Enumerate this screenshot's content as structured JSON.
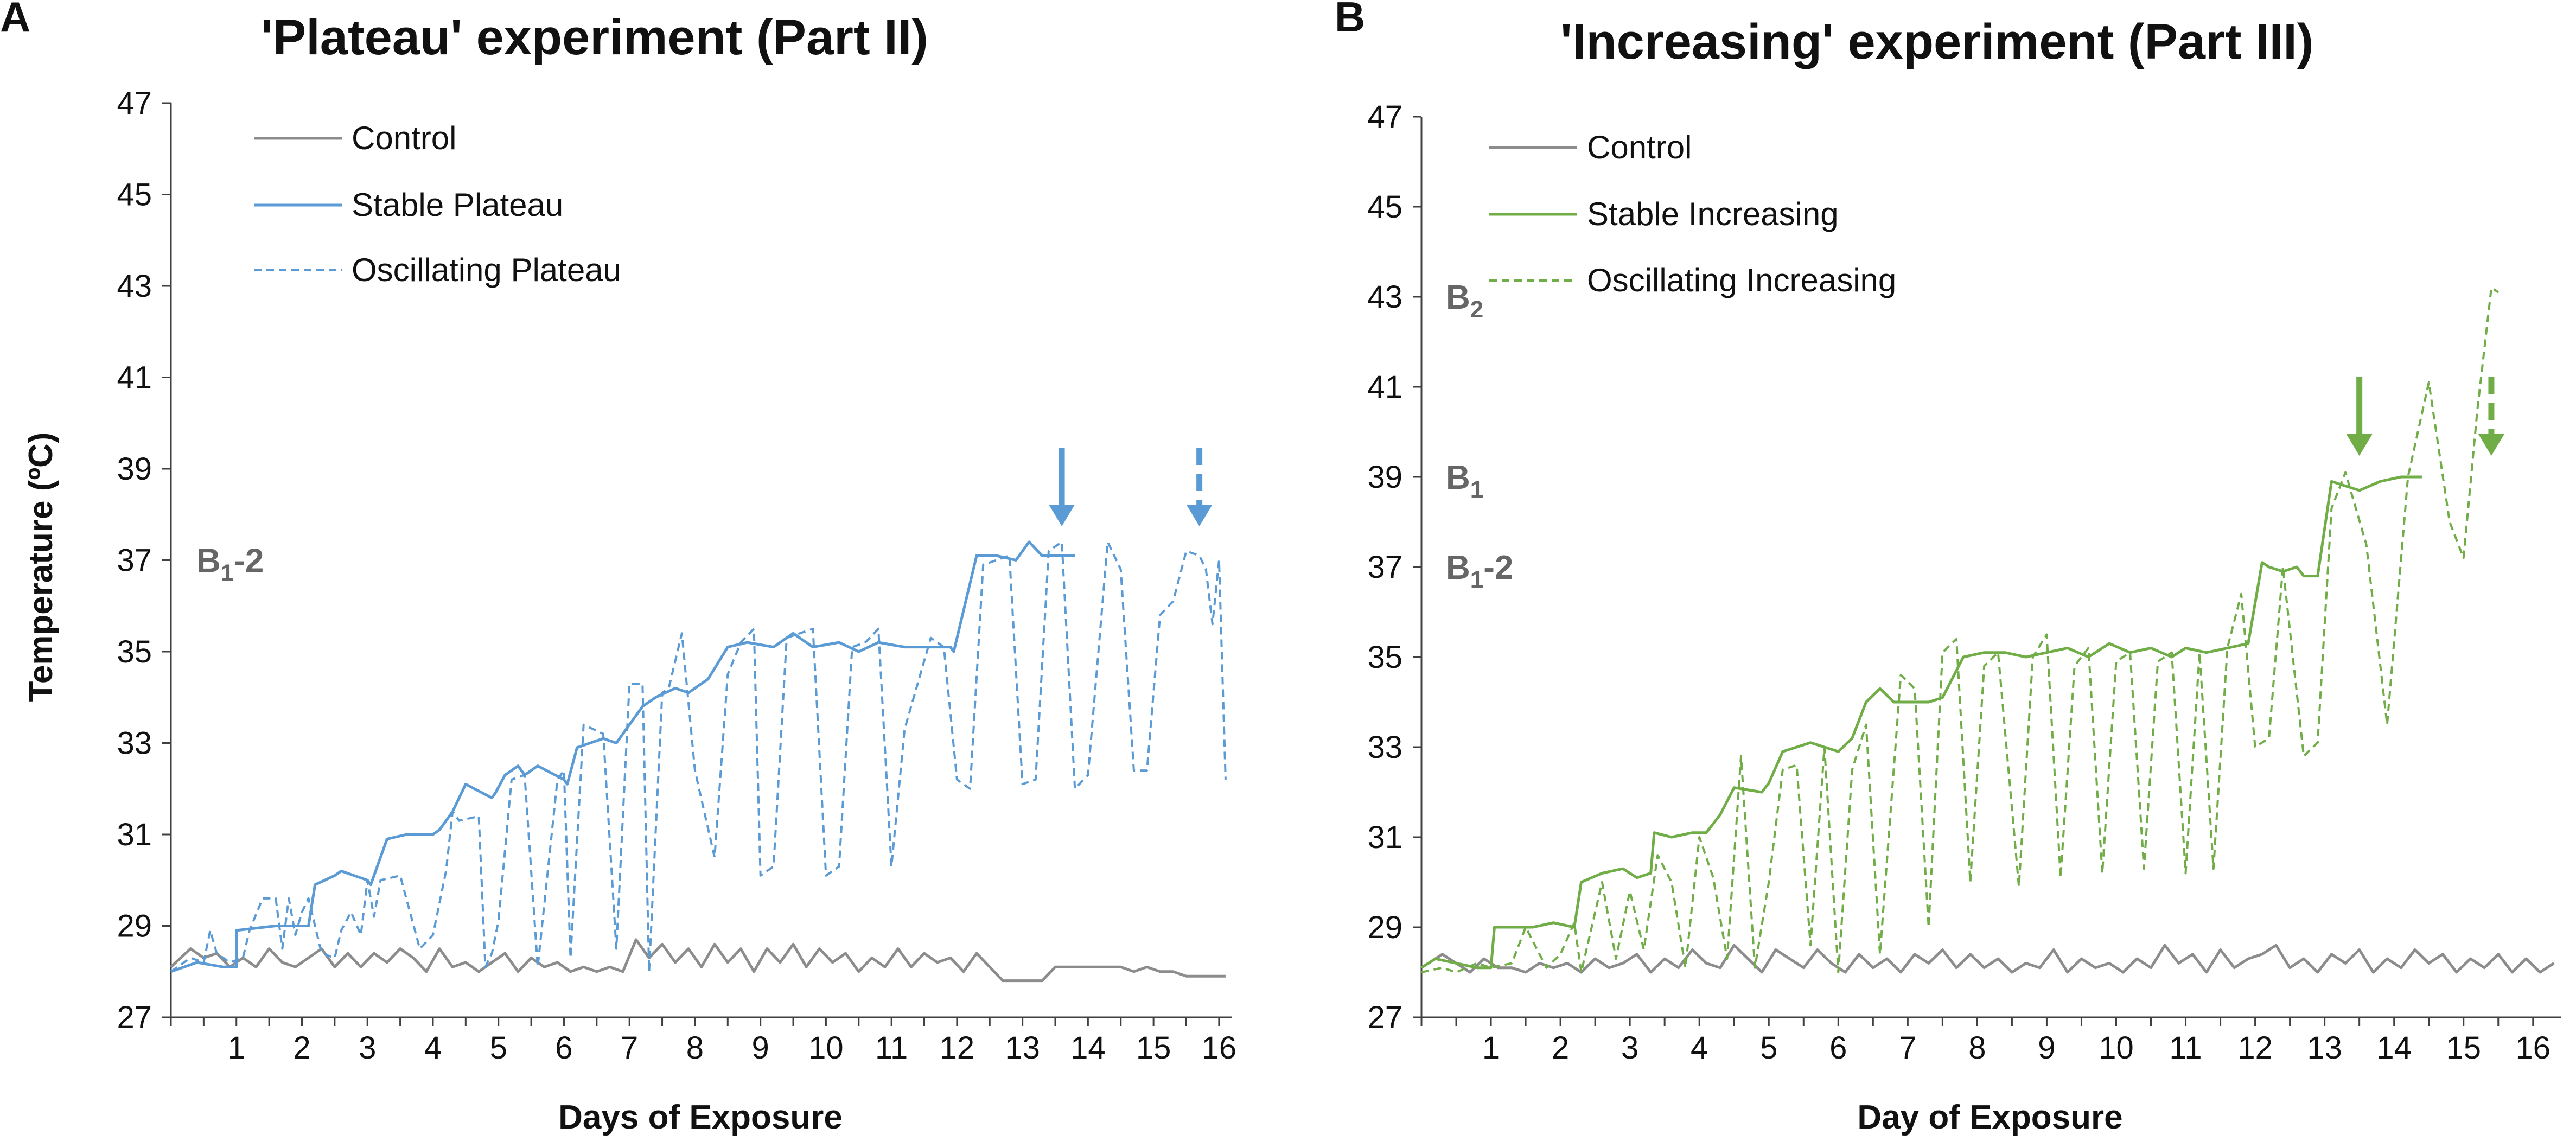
{
  "colors": {
    "control": "#8c8c8c",
    "blue": "#5b9bd5",
    "green": "#70ad47",
    "axis": "#404040",
    "text": "#111111",
    "annot": "#666666"
  },
  "panels": [
    {
      "letter": "A",
      "title": "'Plateau' experiment (Part II)"
    },
    {
      "letter": "B",
      "title": "'Increasing' experiment (Part III)"
    }
  ],
  "chart_data": [
    {
      "type": "line",
      "title": "'Plateau' experiment (Part II)",
      "xlabel": "Days of Exposure",
      "ylabel": "Temperature (ºC)",
      "ylim": [
        27,
        47
      ],
      "xlim": [
        0,
        16.2
      ],
      "yticks": [
        27,
        29,
        31,
        33,
        35,
        37,
        39,
        41,
        43,
        45,
        47
      ],
      "xticks": [
        "1",
        "2",
        "3",
        "4",
        "5",
        "6",
        "7",
        "8",
        "9",
        "10",
        "11",
        "12",
        "13",
        "14",
        "15",
        "16"
      ],
      "legend": [
        "Control",
        "Stable Plateau",
        "Oscillating Plateau"
      ],
      "annotations": [
        {
          "text": "B1-2",
          "y": 37
        }
      ],
      "arrows": [
        {
          "style": "solid",
          "x": 13.6
        },
        {
          "style": "dashed",
          "x": 15.7
        }
      ],
      "series": [
        {
          "name": "Control",
          "style": "solid",
          "color": "#8c8c8c",
          "x": [
            0,
            0.3,
            0.5,
            0.7,
            0.9,
            1.1,
            1.3,
            1.5,
            1.7,
            1.9,
            2.1,
            2.3,
            2.5,
            2.7,
            2.9,
            3.1,
            3.3,
            3.5,
            3.7,
            3.9,
            4.1,
            4.3,
            4.5,
            4.7,
            4.9,
            5.1,
            5.3,
            5.5,
            5.7,
            5.9,
            6.1,
            6.3,
            6.5,
            6.7,
            6.9,
            7.1,
            7.3,
            7.5,
            7.7,
            7.9,
            8.1,
            8.3,
            8.5,
            8.7,
            8.9,
            9.1,
            9.3,
            9.5,
            9.7,
            9.9,
            10.1,
            10.3,
            10.5,
            10.7,
            10.9,
            11.1,
            11.3,
            11.5,
            11.7,
            11.9,
            12.1,
            12.3,
            12.5,
            12.7,
            12.9,
            13.1,
            13.3,
            13.5,
            13.7,
            13.9,
            14.1,
            14.3,
            14.5,
            14.7,
            14.9,
            15.1,
            15.3,
            15.5,
            15.7,
            15.9,
            16.1
          ],
          "y": [
            28.1,
            28.5,
            28.3,
            28.4,
            28.1,
            28.3,
            28.1,
            28.5,
            28.2,
            28.1,
            28.3,
            28.5,
            28.1,
            28.4,
            28.1,
            28.4,
            28.2,
            28.5,
            28.3,
            28.0,
            28.5,
            28.1,
            28.2,
            28.0,
            28.2,
            28.4,
            28.0,
            28.3,
            28.1,
            28.2,
            28.0,
            28.1,
            28.0,
            28.1,
            28.0,
            28.7,
            28.3,
            28.6,
            28.2,
            28.5,
            28.1,
            28.6,
            28.2,
            28.5,
            28.0,
            28.5,
            28.2,
            28.6,
            28.1,
            28.5,
            28.2,
            28.4,
            28.0,
            28.3,
            28.1,
            28.5,
            28.1,
            28.4,
            28.2,
            28.3,
            28.0,
            28.4,
            28.1,
            27.8,
            27.8,
            27.8,
            27.8,
            28.1,
            28.1,
            28.1,
            28.1,
            28.1,
            28.1,
            28.0,
            28.1,
            28.0,
            28.0,
            27.9,
            27.9,
            27.9,
            27.9
          ]
        },
        {
          "name": "Stable Plateau",
          "style": "solid",
          "color": "#5b9bd5",
          "x": [
            0,
            0.4,
            0.8,
            1,
            1,
            1.6,
            1.7,
            2.1,
            2.2,
            2.5,
            2.6,
            3,
            3.05,
            3.3,
            3.6,
            3.9,
            4,
            4.1,
            4.3,
            4.5,
            4.9,
            4.95,
            5.1,
            5.3,
            5.4,
            5.6,
            6,
            6.05,
            6.2,
            6.4,
            6.6,
            6.8,
            6.9,
            7.2,
            7.4,
            7.7,
            7.9,
            8.2,
            8.5,
            8.8,
            9.2,
            9.5,
            9.8,
            10.2,
            10.5,
            10.8,
            11.2,
            11.5,
            11.9,
            11.95,
            12.3,
            12.6,
            12.9,
            13.1,
            13.3,
            13.5,
            13.8
          ],
          "y": [
            28.0,
            28.2,
            28.1,
            28.1,
            28.9,
            29.0,
            29.0,
            29.0,
            29.9,
            30.1,
            30.2,
            30.0,
            29.9,
            30.9,
            31.0,
            31.0,
            31.0,
            31.1,
            31.5,
            32.1,
            31.8,
            31.9,
            32.3,
            32.5,
            32.3,
            32.5,
            32.2,
            32.1,
            32.9,
            33.0,
            33.1,
            33.0,
            33.2,
            33.8,
            34.0,
            34.2,
            34.1,
            34.4,
            35.1,
            35.2,
            35.1,
            35.4,
            35.1,
            35.2,
            35.0,
            35.2,
            35.1,
            35.1,
            35.1,
            35.0,
            37.1,
            37.1,
            37.0,
            37.4,
            37.1,
            37.1,
            37.1
          ]
        },
        {
          "name": "Oscillating Plateau",
          "style": "dashed",
          "color": "#5b9bd5",
          "x": [
            0,
            0.3,
            0.5,
            0.6,
            0.7,
            0.9,
            1.1,
            1.2,
            1.4,
            1.6,
            1.7,
            1.8,
            1.9,
            2.0,
            2.1,
            2.3,
            2.5,
            2.6,
            2.75,
            2.9,
            3.0,
            3.1,
            3.2,
            3.5,
            3.8,
            4.0,
            4.2,
            4.3,
            4.4,
            4.7,
            4.8,
            4.9,
            5.0,
            5.2,
            5.4,
            5.6,
            5.9,
            6.0,
            6.1,
            6.3,
            6.6,
            6.8,
            7.0,
            7.2,
            7.3,
            7.5,
            7.6,
            7.8,
            8.0,
            8.3,
            8.5,
            8.7,
            8.9,
            9.0,
            9.2,
            9.4,
            9.6,
            9.8,
            10.0,
            10.2,
            10.4,
            10.6,
            10.8,
            11.0,
            11.2,
            11.6,
            11.8,
            12.0,
            12.2,
            12.4,
            12.6,
            12.8,
            13.0,
            13.2,
            13.4,
            13.6,
            13.8,
            14.0,
            14.3,
            14.5,
            14.7,
            14.9,
            15.1,
            15.3,
            15.5,
            15.7,
            15.8,
            15.9,
            16.0,
            16.1
          ],
          "y": [
            28.0,
            28.3,
            28.2,
            28.9,
            28.4,
            28.2,
            28.3,
            28.9,
            29.6,
            29.6,
            28.5,
            29.6,
            28.8,
            29.3,
            29.6,
            28.4,
            28.3,
            28.9,
            29.3,
            28.8,
            30.0,
            29.2,
            30.0,
            30.1,
            28.5,
            28.8,
            30.2,
            31.5,
            31.3,
            31.4,
            28.1,
            28.4,
            29.1,
            32.2,
            32.3,
            28.1,
            32.2,
            32.4,
            28.3,
            33.4,
            33.2,
            28.5,
            34.3,
            34.3,
            28.0,
            34.1,
            34.2,
            35.4,
            32.4,
            30.5,
            34.5,
            35.2,
            35.5,
            30.1,
            30.3,
            35.3,
            35.4,
            35.5,
            30.1,
            30.3,
            35.1,
            35.2,
            35.5,
            30.3,
            33.3,
            35.3,
            35.1,
            32.2,
            32.0,
            36.9,
            37.0,
            37.1,
            32.1,
            32.2,
            37.2,
            37.4,
            32.0,
            32.3,
            37.4,
            36.8,
            32.4,
            32.4,
            35.8,
            36.1,
            37.2,
            37.1,
            36.8,
            35.6,
            37.0,
            32.2
          ]
        }
      ]
    },
    {
      "type": "line",
      "title": "'Increasing' experiment (Part III)",
      "xlabel": "Day of Exposure",
      "ylabel": "",
      "ylim": [
        27,
        47
      ],
      "xlim": [
        0,
        16.4
      ],
      "yticks": [
        27,
        29,
        31,
        33,
        35,
        37,
        39,
        41,
        43,
        45,
        47
      ],
      "xticks": [
        "1",
        "2",
        "3",
        "4",
        "5",
        "6",
        "7",
        "8",
        "9",
        "10",
        "11",
        "12",
        "13",
        "14",
        "15",
        "16"
      ],
      "legend": [
        "Control",
        "Stable Increasing",
        "Oscillating Increasing"
      ],
      "annotations": [
        {
          "text": "B2",
          "y": 43
        },
        {
          "text": "B1",
          "y": 39
        },
        {
          "text": "B1-2",
          "y": 37
        }
      ],
      "arrows": [
        {
          "style": "solid",
          "x": 13.5
        },
        {
          "style": "dashed",
          "x": 15.4
        }
      ],
      "series": [
        {
          "name": "Control",
          "style": "solid",
          "color": "#8c8c8c",
          "x": [
            0,
            0.3,
            0.5,
            0.7,
            0.9,
            1.1,
            1.3,
            1.5,
            1.7,
            1.9,
            2.1,
            2.3,
            2.5,
            2.7,
            2.9,
            3.1,
            3.3,
            3.5,
            3.7,
            3.9,
            4.1,
            4.3,
            4.5,
            4.7,
            4.9,
            5.1,
            5.3,
            5.5,
            5.7,
            5.9,
            6.1,
            6.3,
            6.5,
            6.7,
            6.9,
            7.1,
            7.3,
            7.5,
            7.7,
            7.9,
            8.1,
            8.3,
            8.5,
            8.7,
            8.9,
            9.1,
            9.3,
            9.5,
            9.7,
            9.9,
            10.1,
            10.3,
            10.5,
            10.7,
            10.9,
            11.1,
            11.3,
            11.5,
            11.7,
            11.9,
            12.1,
            12.3,
            12.5,
            12.7,
            12.9,
            13.1,
            13.3,
            13.5,
            13.7,
            13.9,
            14.1,
            14.3,
            14.5,
            14.7,
            14.9,
            15.1,
            15.3,
            15.5,
            15.7,
            15.9,
            16.1,
            16.3
          ],
          "y": [
            28.1,
            28.4,
            28.2,
            28.0,
            28.3,
            28.1,
            28.1,
            28.0,
            28.2,
            28.1,
            28.2,
            28.0,
            28.3,
            28.1,
            28.2,
            28.4,
            28.0,
            28.3,
            28.1,
            28.5,
            28.2,
            28.1,
            28.6,
            28.3,
            28.0,
            28.5,
            28.3,
            28.1,
            28.5,
            28.2,
            28.0,
            28.4,
            28.1,
            28.3,
            28.0,
            28.4,
            28.2,
            28.5,
            28.1,
            28.4,
            28.1,
            28.3,
            28.0,
            28.2,
            28.1,
            28.5,
            28.0,
            28.3,
            28.1,
            28.2,
            28.0,
            28.3,
            28.1,
            28.6,
            28.2,
            28.4,
            28.0,
            28.5,
            28.1,
            28.3,
            28.4,
            28.6,
            28.1,
            28.3,
            28.0,
            28.4,
            28.2,
            28.5,
            28.0,
            28.3,
            28.1,
            28.5,
            28.2,
            28.4,
            28.0,
            28.3,
            28.1,
            28.4,
            28.0,
            28.3,
            28.0,
            28.2
          ]
        },
        {
          "name": "Stable Increasing",
          "style": "solid",
          "color": "#70ad47",
          "x": [
            0,
            0.2,
            0.5,
            0.8,
            1.0,
            1.05,
            1.6,
            1.9,
            2.2,
            2.3,
            2.6,
            2.9,
            3.1,
            3.3,
            3.35,
            3.6,
            3.9,
            4.1,
            4.3,
            4.5,
            4.9,
            5.0,
            5.2,
            5.4,
            5.6,
            6.0,
            6.2,
            6.4,
            6.6,
            6.8,
            7.1,
            7.3,
            7.5,
            7.8,
            8.1,
            8.4,
            8.7,
            9.0,
            9.3,
            9.6,
            9.9,
            10.2,
            10.5,
            10.8,
            11.0,
            11.3,
            11.6,
            11.9,
            12.1,
            12.2,
            12.4,
            12.6,
            12.7,
            12.9,
            13.1,
            13.3,
            13.5,
            13.8,
            14.1,
            14.4
          ],
          "y": [
            28.1,
            28.3,
            28.2,
            28.1,
            28.1,
            29.0,
            29.0,
            29.1,
            29.0,
            30.0,
            30.2,
            30.3,
            30.1,
            30.2,
            31.1,
            31.0,
            31.1,
            31.1,
            31.5,
            32.1,
            32.0,
            32.2,
            32.9,
            33.0,
            33.1,
            32.9,
            33.2,
            34.0,
            34.3,
            34.0,
            34.0,
            34.0,
            34.1,
            35.0,
            35.1,
            35.1,
            35.0,
            35.1,
            35.2,
            35.0,
            35.3,
            35.1,
            35.2,
            35.0,
            35.2,
            35.1,
            35.2,
            35.3,
            37.1,
            37.0,
            36.9,
            37.0,
            36.8,
            36.8,
            38.9,
            38.8,
            38.7,
            38.9,
            39.0,
            39.0
          ]
        },
        {
          "name": "Oscillating Increasing",
          "style": "dashed",
          "color": "#70ad47",
          "x": [
            0,
            0.3,
            0.5,
            0.8,
            1.0,
            1.3,
            1.5,
            1.8,
            2.0,
            2.2,
            2.3,
            2.6,
            2.8,
            3.0,
            3.2,
            3.4,
            3.6,
            3.8,
            4.0,
            4.2,
            4.4,
            4.6,
            4.8,
            5.0,
            5.2,
            5.4,
            5.6,
            5.8,
            6.0,
            6.2,
            6.4,
            6.6,
            6.9,
            7.1,
            7.3,
            7.5,
            7.7,
            7.9,
            8.1,
            8.3,
            8.6,
            8.8,
            9.0,
            9.2,
            9.4,
            9.6,
            9.8,
            10.0,
            10.2,
            10.4,
            10.6,
            10.8,
            11.0,
            11.2,
            11.4,
            11.6,
            11.8,
            12.0,
            12.2,
            12.4,
            12.7,
            12.9,
            13.1,
            13.3,
            13.6,
            13.9,
            14.2,
            14.5,
            14.8,
            15.0,
            15.2,
            15.4,
            15.5
          ],
          "y": [
            28.0,
            28.1,
            28.0,
            28.2,
            28.1,
            28.2,
            29.0,
            28.1,
            28.4,
            29.1,
            28.0,
            30.0,
            28.3,
            29.8,
            28.5,
            30.6,
            30.0,
            28.1,
            31.0,
            30.1,
            28.3,
            32.8,
            28.1,
            30.0,
            32.5,
            32.6,
            28.6,
            33.0,
            28.0,
            32.5,
            33.5,
            28.4,
            34.6,
            34.3,
            29.0,
            35.1,
            35.4,
            30.0,
            34.8,
            35.1,
            29.9,
            35.0,
            35.5,
            30.1,
            34.8,
            35.2,
            30.2,
            34.9,
            35.1,
            30.3,
            34.9,
            35.1,
            30.2,
            35.1,
            30.3,
            35.2,
            36.4,
            33.0,
            33.2,
            37.0,
            32.8,
            33.1,
            38.3,
            39.1,
            37.5,
            33.5,
            39.0,
            41.1,
            38.0,
            37.2,
            40.5,
            43.2,
            43.1
          ]
        }
      ]
    }
  ]
}
